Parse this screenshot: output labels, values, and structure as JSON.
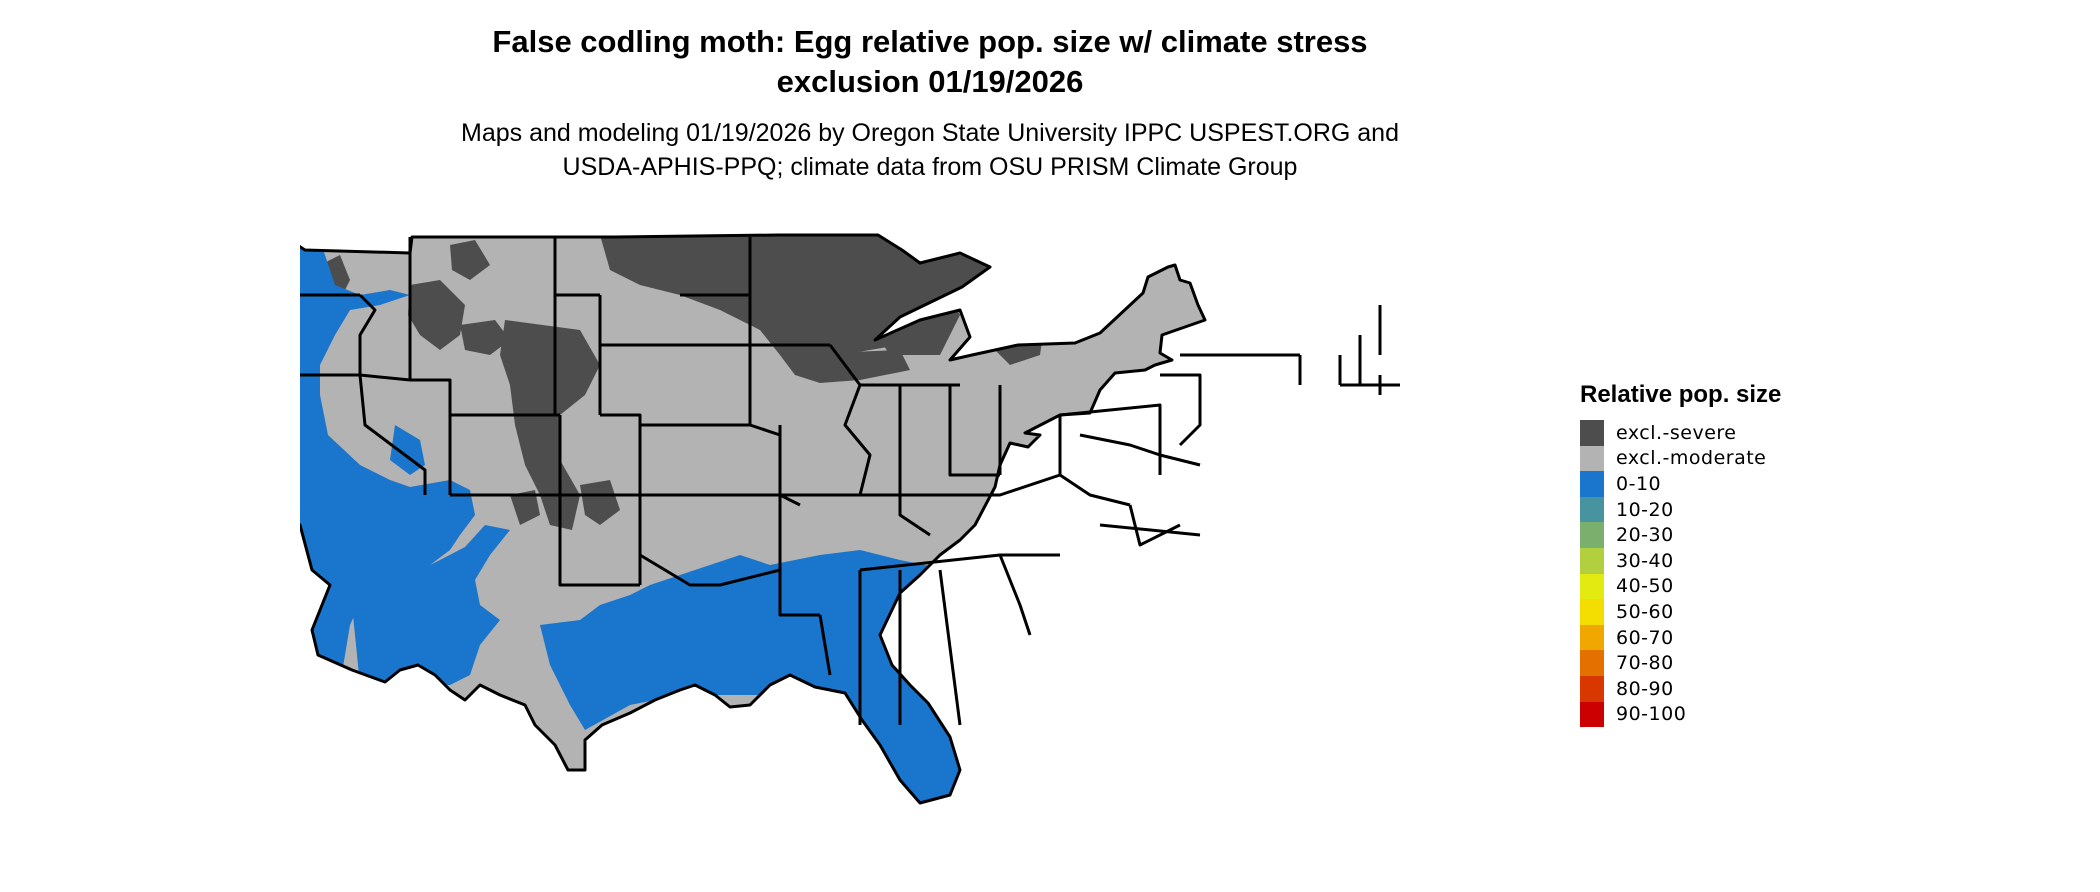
{
  "map": {
    "title_line1": "False codling moth: Egg relative pop. size w/ climate stress",
    "title_line2": "exclusion 01/19/2026",
    "subtitle_line1": "Maps and modeling 01/19/2026 by Oregon State University IPPC USPEST.ORG and",
    "subtitle_line2": "USDA-APHIS-PPQ; climate data from OSU PRISM Climate Group"
  },
  "legend": {
    "title": "Relative pop. size",
    "items": [
      {
        "label": "excl.-severe",
        "color": "#4d4d4d"
      },
      {
        "label": "excl.-moderate",
        "color": "#b3b3b3"
      },
      {
        "label": "0-10",
        "color": "#1a75cc"
      },
      {
        "label": "10-20",
        "color": "#4893a0"
      },
      {
        "label": "20-30",
        "color": "#7baf6e"
      },
      {
        "label": "30-40",
        "color": "#b2cf3f"
      },
      {
        "label": "40-50",
        "color": "#e2ea12"
      },
      {
        "label": "50-60",
        "color": "#f4dd00"
      },
      {
        "label": "60-70",
        "color": "#f0a800"
      },
      {
        "label": "70-80",
        "color": "#e47000"
      },
      {
        "label": "80-90",
        "color": "#d83800"
      },
      {
        "label": "90-100",
        "color": "#cc0000"
      }
    ]
  }
}
